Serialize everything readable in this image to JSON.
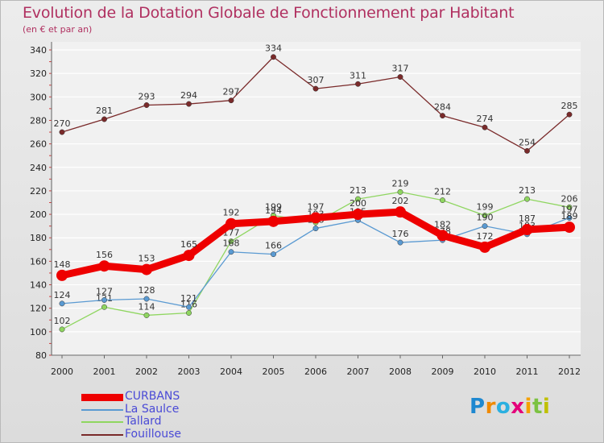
{
  "title": "Evolution de la Dotation Globale de Fonctionnement par Habitant",
  "subtitle": "(en € et par an)",
  "logo": {
    "letters": [
      {
        "char": "P",
        "color": "#1e88d0"
      },
      {
        "char": "r",
        "color": "#f08a00"
      },
      {
        "char": "o",
        "color": "#2bb0e0"
      },
      {
        "char": "x",
        "color": "#e4007a"
      },
      {
        "char": "i",
        "color": "#f5a000"
      },
      {
        "char": "t",
        "color": "#7cc242"
      },
      {
        "char": "i",
        "color": "#c0c000"
      }
    ]
  },
  "chart_data": {
    "type": "line",
    "title": "Evolution de la Dotation Globale de Fonctionnement par Habitant",
    "subtitle": "(en € et par an)",
    "xlabel": "",
    "ylabel": "",
    "ylim": [
      80,
      340
    ],
    "yticks": [
      80,
      100,
      120,
      140,
      160,
      180,
      200,
      220,
      240,
      260,
      280,
      300,
      320,
      340
    ],
    "grid": true,
    "legend_position": "bottom-left",
    "x": [
      "2000",
      "2001",
      "2002",
      "2003",
      "2004",
      "2005",
      "2006",
      "2007",
      "2008",
      "2009",
      "2010",
      "2011",
      "2012"
    ],
    "series": [
      {
        "name": "Fouillouse",
        "color": "#7a2a2a",
        "style": "thin",
        "labels": "above",
        "values": [
          270,
          281,
          293,
          294,
          297,
          334,
          307,
          311,
          317,
          284,
          274,
          254,
          285
        ]
      },
      {
        "name": "Tallard",
        "color": "#8fd660",
        "style": "thin",
        "labels": "above",
        "values": [
          102,
          121,
          114,
          116,
          177,
          199,
          193,
          213,
          219,
          212,
          199,
          213,
          206
        ]
      },
      {
        "name": "La Saulce",
        "color": "#5a9ad2",
        "style": "thin",
        "labels": "above",
        "values": [
          124,
          127,
          128,
          121,
          168,
          166,
          188,
          195,
          176,
          178,
          190,
          183,
          197
        ]
      },
      {
        "name": "CURBANS",
        "color": "#ee0000",
        "style": "thick",
        "labels": "above",
        "values": [
          148,
          156,
          153,
          165,
          192,
          194,
          197,
          200,
          202,
          182,
          172,
          187,
          189
        ]
      }
    ],
    "legend_order": [
      "CURBANS",
      "La Saulce",
      "Tallard",
      "Fouillouse"
    ]
  }
}
